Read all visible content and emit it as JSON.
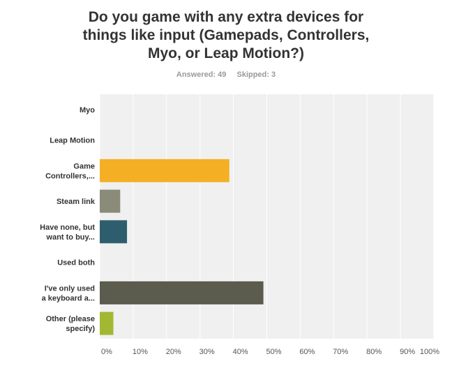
{
  "title_lines": [
    "Do you game with any extra devices for",
    "things like input (Gamepads, Controllers,",
    "Myo, or Leap Motion?)"
  ],
  "answered": "Answered: 49",
  "skipped": "Skipped: 3",
  "chart_data": {
    "type": "bar",
    "orientation": "horizontal",
    "categories": [
      [
        "Myo"
      ],
      [
        "Leap Motion"
      ],
      [
        "Game",
        "Controllers,..."
      ],
      [
        "Steam link"
      ],
      [
        "Have none, but",
        "want to buy..."
      ],
      [
        "Used both"
      ],
      [
        "I've only used",
        "a keyboard a..."
      ],
      [
        "Other (please",
        "specify)"
      ]
    ],
    "values": [
      0,
      0,
      38.78,
      6.12,
      8.16,
      0,
      48.98,
      4.08
    ],
    "colors": [
      "#f5af25",
      "#f5af25",
      "#f5af25",
      "#8a8b79",
      "#2e5e6e",
      "#f5af25",
      "#5c5c4e",
      "#a3b832"
    ],
    "xlim": [
      0,
      100
    ],
    "x_ticks": [
      "0%",
      "10%",
      "20%",
      "30%",
      "40%",
      "50%",
      "60%",
      "70%",
      "80%",
      "90%",
      "100%"
    ],
    "grid": true,
    "plot_background": "#f0f0f0"
  }
}
